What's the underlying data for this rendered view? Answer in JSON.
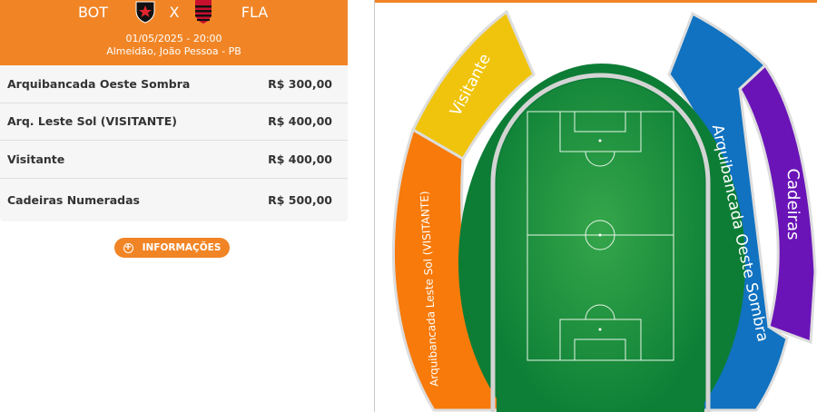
{
  "match": {
    "home": "BOT",
    "away": "FLA",
    "separator": "X",
    "datetime": "01/05/2025 - 20:00",
    "venue": "Almeidão, João Pessoa - PB",
    "home_logo": "botafogo-pb-shield",
    "away_logo": "flamengo-shield"
  },
  "sectors": [
    {
      "name": "Arquibancada Oeste Sombra",
      "price": "R$ 300,00"
    },
    {
      "name": "Arq. Leste Sol (VISITANTE)",
      "price": "R$ 400,00"
    },
    {
      "name": "Visitante",
      "price": "R$ 400,00"
    },
    {
      "name": "Cadeiras Numeradas",
      "price": "R$ 500,00"
    }
  ],
  "info_button": {
    "label": "INFORMAÇÕES",
    "icon": "plus-circle-icon"
  },
  "map": {
    "labels": {
      "visitante": "Visitante",
      "leste": "Arquibancada Leste Sol (VISITANTE)",
      "oeste": "Arquibancada Oeste Sombra",
      "cadeiras": "Cadeiras"
    },
    "colors": {
      "accent": "#f18526",
      "visitante": "#f0c40c",
      "leste": "#f77a0a",
      "oeste": "#1072c0",
      "cadeiras": "#6a14b8",
      "pitch": "#0f8a3c"
    }
  }
}
